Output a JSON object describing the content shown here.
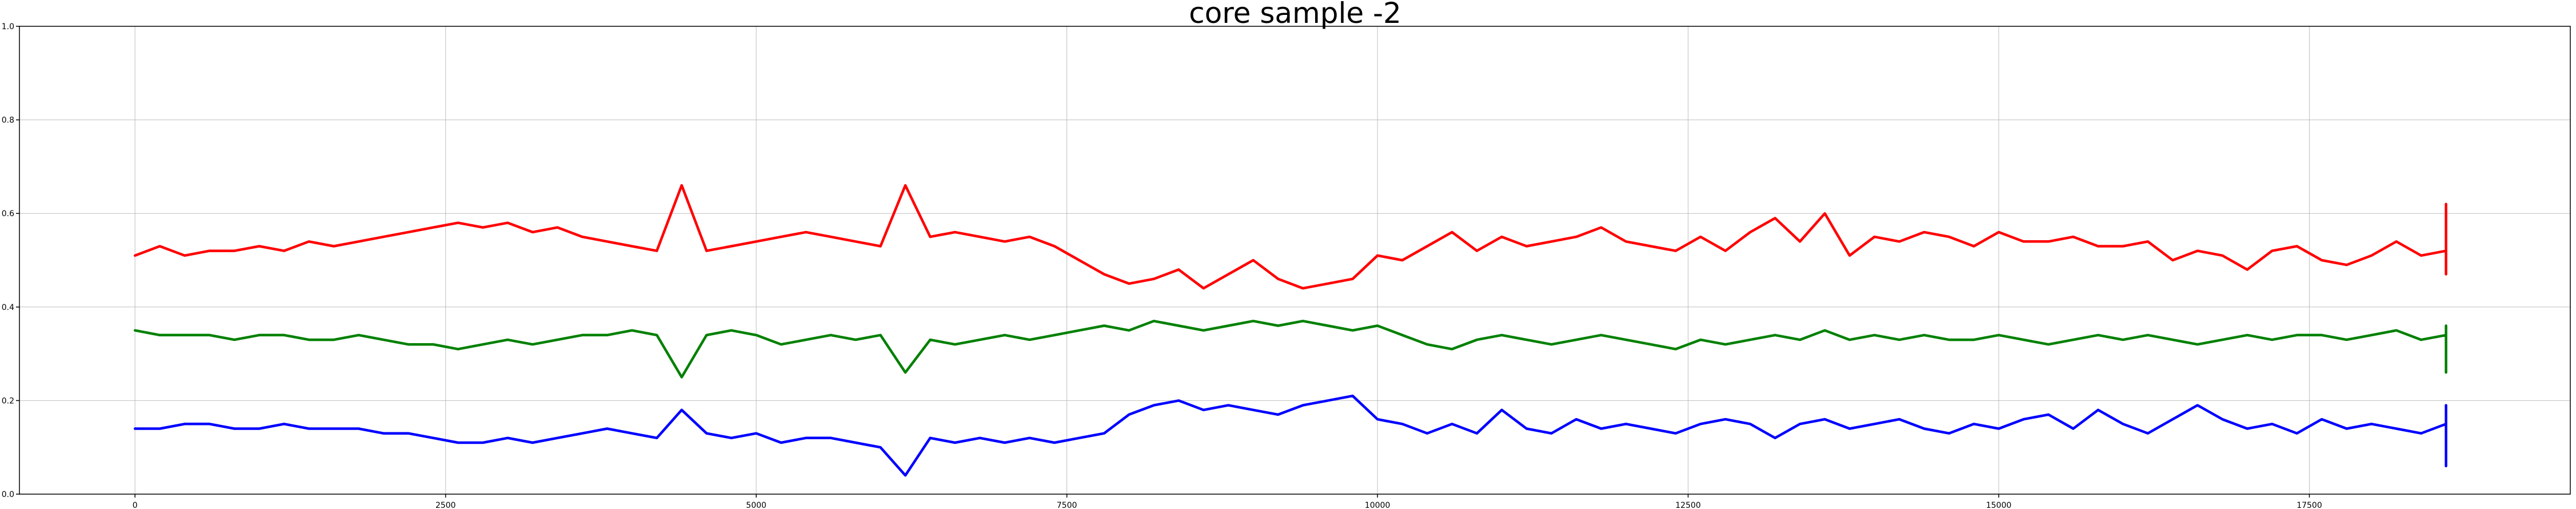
{
  "chart_data": {
    "type": "line",
    "title": "core sample -2",
    "xlabel": "",
    "ylabel": "",
    "xlim": [
      -930,
      19600
    ],
    "ylim": [
      0.0,
      1.0
    ],
    "grid": true,
    "x_ticks": [
      0,
      2500,
      5000,
      7500,
      10000,
      12500,
      15000,
      17500
    ],
    "x_tick_labels": [
      "0",
      "2500",
      "5000",
      "7500",
      "10000",
      "12500",
      "15000",
      "17500"
    ],
    "y_ticks": [
      0.0,
      0.2,
      0.4,
      0.6,
      0.8,
      1.0
    ],
    "y_tick_labels": [
      "0.0",
      "0.2",
      "0.4",
      "0.6",
      "0.8",
      "1.0"
    ],
    "x_start": 0,
    "x_end": 18600,
    "x_step": 200,
    "series": [
      {
        "name": "red",
        "color": "#ff0000",
        "values": [
          0.51,
          0.53,
          0.51,
          0.52,
          0.52,
          0.53,
          0.52,
          0.54,
          0.53,
          0.54,
          0.55,
          0.56,
          0.57,
          0.58,
          0.57,
          0.58,
          0.56,
          0.57,
          0.55,
          0.54,
          0.53,
          0.52,
          0.66,
          0.52,
          0.53,
          0.54,
          0.55,
          0.56,
          0.55,
          0.54,
          0.53,
          0.66,
          0.55,
          0.56,
          0.55,
          0.54,
          0.55,
          0.53,
          0.5,
          0.47,
          0.45,
          0.46,
          0.48,
          0.44,
          0.47,
          0.5,
          0.46,
          0.44,
          0.45,
          0.46,
          0.51,
          0.5,
          0.53,
          0.56,
          0.52,
          0.55,
          0.53,
          0.54,
          0.55,
          0.57,
          0.54,
          0.53,
          0.52,
          0.55,
          0.52,
          0.56,
          0.59,
          0.54,
          0.6,
          0.51,
          0.55,
          0.54,
          0.56,
          0.55,
          0.53,
          0.56,
          0.54,
          0.54,
          0.55,
          0.53,
          0.53,
          0.54,
          0.5,
          0.52,
          0.51,
          0.48,
          0.52,
          0.53,
          0.5,
          0.49,
          0.51,
          0.54,
          0.51,
          0.52,
          0.55,
          0.51,
          0.52,
          0.53,
          0.54,
          0.53,
          0.52,
          0.55,
          0.56,
          0.59,
          0.53,
          0.5,
          0.52,
          0.49,
          0.51,
          0.5,
          0.48,
          0.5,
          0.51,
          0.49,
          0.5,
          0.52,
          0.51,
          0.5,
          0.51,
          0.49,
          0.5,
          0.48,
          0.51,
          0.52,
          0.5,
          0.49,
          0.51,
          0.47,
          0.48,
          0.49,
          0.5,
          0.52,
          0.51,
          0.53,
          0.49,
          0.55,
          0.51,
          0.52,
          0.53,
          0.52,
          0.53,
          0.51,
          0.52,
          0.51,
          0.53,
          0.54,
          0.52,
          0.56,
          0.53,
          0.55,
          0.54,
          0.58,
          0.54,
          0.56,
          0.55,
          0.57,
          0.58,
          0.55,
          0.57,
          0.56,
          0.59,
          0.57,
          0.58,
          0.6,
          0.58,
          0.55,
          0.54,
          0.53,
          0.54,
          0.51,
          0.53,
          0.52,
          0.51,
          0.5,
          0.49,
          0.5,
          0.48,
          0.49,
          0.48,
          0.5,
          0.49,
          0.51,
          0.55,
          0.62,
          0.52,
          0.51,
          0.53,
          0.55,
          0.53,
          0.52,
          0.51,
          0.52,
          0.53,
          0.51,
          0.52,
          0.51,
          0.5,
          0.51
        ]
      },
      {
        "name": "green",
        "color": "#008000",
        "values": [
          0.35,
          0.34,
          0.34,
          0.34,
          0.33,
          0.34,
          0.34,
          0.33,
          0.33,
          0.34,
          0.33,
          0.32,
          0.32,
          0.31,
          0.32,
          0.33,
          0.32,
          0.33,
          0.34,
          0.34,
          0.35,
          0.34,
          0.25,
          0.34,
          0.35,
          0.34,
          0.32,
          0.33,
          0.34,
          0.33,
          0.34,
          0.26,
          0.33,
          0.32,
          0.33,
          0.34,
          0.33,
          0.34,
          0.35,
          0.36,
          0.35,
          0.37,
          0.36,
          0.35,
          0.36,
          0.37,
          0.36,
          0.37,
          0.36,
          0.35,
          0.36,
          0.34,
          0.32,
          0.31,
          0.33,
          0.34,
          0.33,
          0.32,
          0.33,
          0.34,
          0.33,
          0.32,
          0.31,
          0.33,
          0.32,
          0.33,
          0.34,
          0.33,
          0.35,
          0.33,
          0.34,
          0.33,
          0.34,
          0.33,
          0.33,
          0.34,
          0.33,
          0.32,
          0.33,
          0.34,
          0.33,
          0.34,
          0.33,
          0.32,
          0.33,
          0.34,
          0.33,
          0.34,
          0.34,
          0.33,
          0.34,
          0.35,
          0.33,
          0.34,
          0.33,
          0.34,
          0.33,
          0.34,
          0.35,
          0.34,
          0.33,
          0.29,
          0.34,
          0.34,
          0.35,
          0.34,
          0.35,
          0.34,
          0.35,
          0.34,
          0.35,
          0.34,
          0.34,
          0.35,
          0.34,
          0.35,
          0.34,
          0.33,
          0.34,
          0.35,
          0.34,
          0.33,
          0.34,
          0.35,
          0.34,
          0.33,
          0.34,
          0.35,
          0.34,
          0.33,
          0.34,
          0.35,
          0.33,
          0.34,
          0.33,
          0.29,
          0.33,
          0.34,
          0.32,
          0.33,
          0.34,
          0.33,
          0.32,
          0.33,
          0.34,
          0.33,
          0.32,
          0.31,
          0.33,
          0.32,
          0.33,
          0.32,
          0.31,
          0.33,
          0.32,
          0.3,
          0.33,
          0.31,
          0.32,
          0.3,
          0.33,
          0.31,
          0.32,
          0.33,
          0.3,
          0.26,
          0.31,
          0.32,
          0.33,
          0.34,
          0.35,
          0.34,
          0.35,
          0.34,
          0.35,
          0.34,
          0.35,
          0.36,
          0.35,
          0.36,
          0.35,
          0.36,
          0.36,
          0.35,
          0.36,
          0.36,
          0.34,
          0.32,
          0.35,
          0.36,
          0.35,
          0.34,
          0.35,
          0.36,
          0.35,
          0.36,
          0.35,
          0.34,
          0.35,
          0.36
        ]
      },
      {
        "name": "blue",
        "color": "#0000ff",
        "values": [
          0.14,
          0.14,
          0.15,
          0.15,
          0.14,
          0.14,
          0.15,
          0.14,
          0.14,
          0.14,
          0.13,
          0.13,
          0.12,
          0.11,
          0.11,
          0.12,
          0.11,
          0.12,
          0.13,
          0.14,
          0.13,
          0.12,
          0.18,
          0.13,
          0.12,
          0.13,
          0.11,
          0.12,
          0.12,
          0.11,
          0.1,
          0.04,
          0.12,
          0.11,
          0.12,
          0.11,
          0.12,
          0.11,
          0.12,
          0.13,
          0.17,
          0.19,
          0.2,
          0.18,
          0.19,
          0.18,
          0.17,
          0.19,
          0.2,
          0.21,
          0.16,
          0.15,
          0.13,
          0.15,
          0.13,
          0.18,
          0.14,
          0.13,
          0.16,
          0.14,
          0.15,
          0.14,
          0.13,
          0.15,
          0.16,
          0.15,
          0.12,
          0.15,
          0.16,
          0.14,
          0.15,
          0.16,
          0.14,
          0.13,
          0.15,
          0.14,
          0.16,
          0.17,
          0.14,
          0.18,
          0.15,
          0.13,
          0.16,
          0.19,
          0.16,
          0.14,
          0.15,
          0.13,
          0.16,
          0.14,
          0.15,
          0.14,
          0.13,
          0.15,
          0.16,
          0.15,
          0.14,
          0.16,
          0.15,
          0.14,
          0.16,
          0.06,
          0.15,
          0.14,
          0.13,
          0.16,
          0.14,
          0.15,
          0.16,
          0.14,
          0.15,
          0.13,
          0.16,
          0.15,
          0.16,
          0.14,
          0.16,
          0.13,
          0.15,
          0.16,
          0.14,
          0.15,
          0.13,
          0.16,
          0.14,
          0.15,
          0.16,
          0.13,
          0.15,
          0.14,
          0.16,
          0.14,
          0.15,
          0.16,
          0.14,
          0.08,
          0.15,
          0.14,
          0.13,
          0.14,
          0.15,
          0.13,
          0.14,
          0.15,
          0.14,
          0.15,
          0.16,
          0.15,
          0.16,
          0.19,
          0.15,
          0.13,
          0.12,
          0.13,
          0.12,
          0.13,
          0.12,
          0.11,
          0.12,
          0.13,
          0.12,
          0.11,
          0.12,
          0.11,
          0.1,
          0.11,
          0.12,
          0.09,
          0.07,
          0.11,
          0.12,
          0.14,
          0.13,
          0.14,
          0.15,
          0.14,
          0.16,
          0.15,
          0.16,
          0.17,
          0.16,
          0.18,
          0.17,
          0.16,
          0.17,
          0.16,
          0.14,
          0.13,
          0.14,
          0.13,
          0.12,
          0.11,
          0.12,
          0.13,
          0.12,
          0.13,
          0.12,
          0.13,
          0.12,
          0.13
        ]
      }
    ]
  }
}
